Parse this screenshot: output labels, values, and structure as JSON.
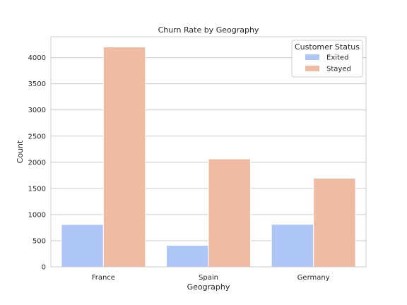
{
  "chart_data": {
    "type": "bar",
    "title": "Churn Rate by Geography",
    "xlabel": "Geography",
    "ylabel": "Count",
    "categories": [
      "France",
      "Spain",
      "Germany"
    ],
    "series": [
      {
        "name": "Exited",
        "values": [
          810,
          413,
          814
        ],
        "color": "#aec7f8"
      },
      {
        "name": "Stayed",
        "values": [
          4204,
          2064,
          1695
        ],
        "color": "#efbba3"
      }
    ],
    "ylim": [
      0,
      4400
    ],
    "yticks": [
      0,
      500,
      1000,
      1500,
      2000,
      2500,
      3000,
      3500,
      4000
    ],
    "grid": "horizontal",
    "legend": {
      "title": "Customer Status",
      "placement": "top-right"
    }
  }
}
